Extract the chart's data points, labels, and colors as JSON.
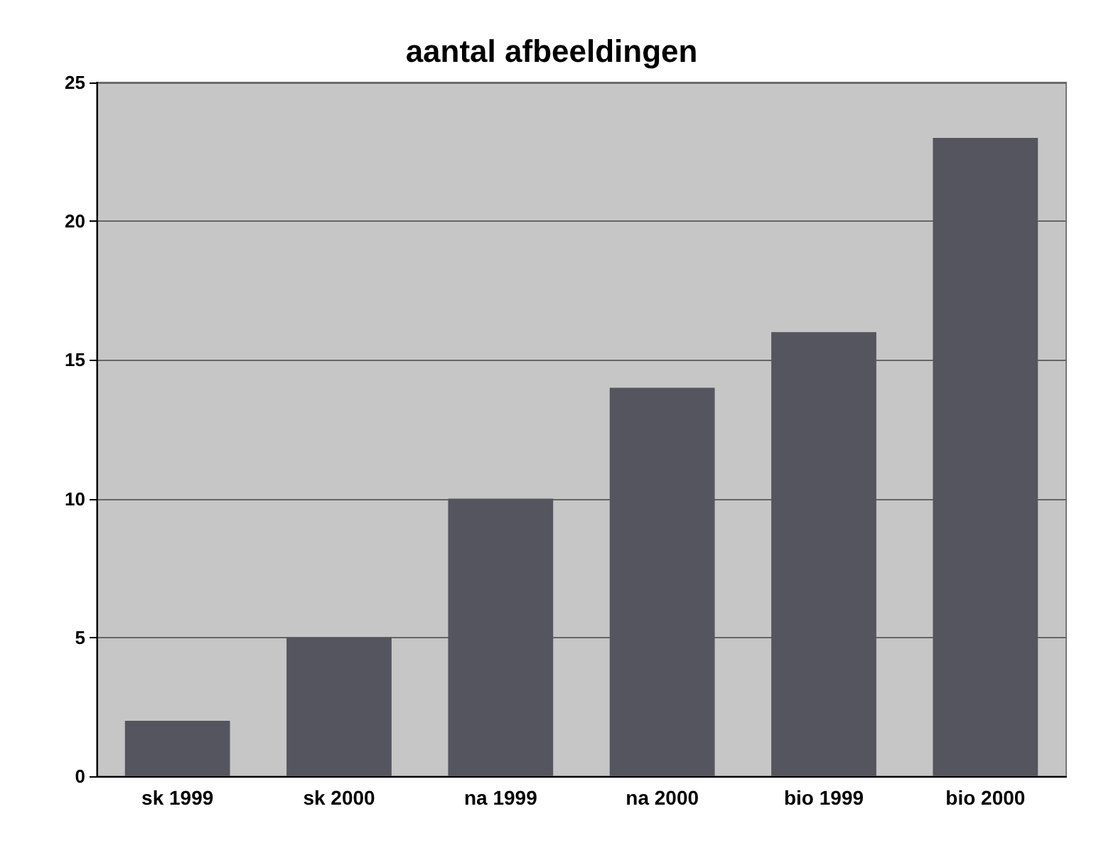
{
  "chart_data": {
    "type": "bar",
    "title": "aantal afbeeldingen",
    "categories": [
      "sk 1999",
      "sk 2000",
      "na 1999",
      "na 2000",
      "bio 1999",
      "bio 2000"
    ],
    "values": [
      2,
      5,
      10,
      14,
      16,
      23
    ],
    "color": "#55555f",
    "ylim": [
      0,
      25
    ],
    "yticks": [
      0,
      5,
      10,
      15,
      20,
      25
    ],
    "grid": "y"
  }
}
